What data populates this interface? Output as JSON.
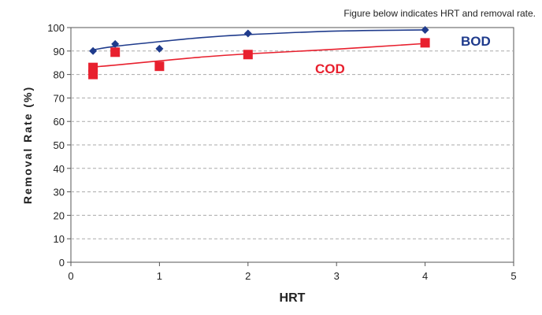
{
  "caption": "Figure below indicates HRT and removal rate.",
  "chart_data": {
    "type": "scatter",
    "xlabel": "HRT",
    "ylabel": "Removal Rate (%)",
    "xlim": [
      0,
      5
    ],
    "ylim": [
      0,
      100
    ],
    "x_ticks": [
      "0",
      "1",
      "2",
      "3",
      "4",
      "5"
    ],
    "y_ticks": [
      "0",
      "10",
      "20",
      "30",
      "40",
      "50",
      "60",
      "70",
      "80",
      "90",
      "100"
    ],
    "grid": "horizontal dashed",
    "series": [
      {
        "name": "BOD",
        "color": "#1f3b8c",
        "marker": "diamond",
        "points": [
          [
            0.25,
            90
          ],
          [
            0.5,
            93
          ],
          [
            1,
            91
          ],
          [
            2,
            97.5
          ],
          [
            4,
            99
          ]
        ],
        "trend": [
          [
            0.25,
            90.5
          ],
          [
            0.5,
            92
          ],
          [
            1,
            94
          ],
          [
            1.5,
            95.8
          ],
          [
            2,
            97
          ],
          [
            3,
            98.5
          ],
          [
            4,
            99
          ]
        ]
      },
      {
        "name": "COD",
        "color": "#e8202e",
        "marker": "square",
        "points": [
          [
            0.25,
            83
          ],
          [
            0.25,
            80
          ],
          [
            0.5,
            89.5
          ],
          [
            1,
            83.5
          ],
          [
            2,
            88.5
          ],
          [
            4,
            93.5
          ]
        ],
        "trend": [
          [
            0.25,
            83.2
          ],
          [
            0.5,
            84
          ],
          [
            1,
            85.8
          ],
          [
            1.5,
            87.5
          ],
          [
            2,
            88.8
          ],
          [
            3,
            90.8
          ],
          [
            4,
            93.2
          ]
        ]
      }
    ]
  }
}
